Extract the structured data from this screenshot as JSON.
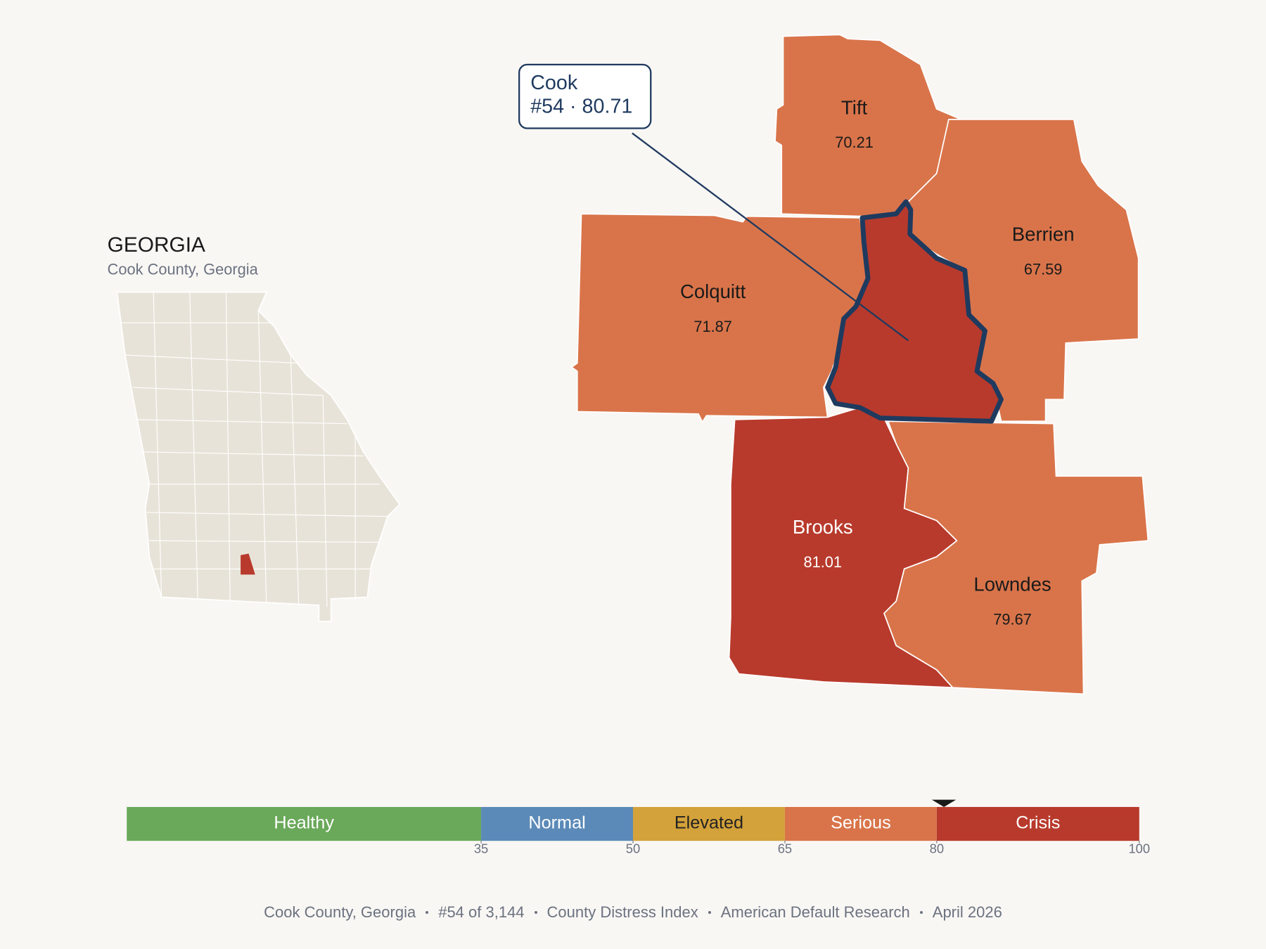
{
  "state": {
    "title": "GEORGIA",
    "subtitle": "Cook County, Georgia"
  },
  "map": {
    "counties": [
      {
        "name": "Tift",
        "value": 70.21
      },
      {
        "name": "Berrien",
        "value": 67.59
      },
      {
        "name": "Colquitt",
        "value": 71.87
      },
      {
        "name": "Brooks",
        "value": 81.01
      },
      {
        "name": "Lowndes",
        "value": 79.67
      }
    ],
    "highlight": {
      "name": "Cook",
      "label": "#54 · 80.71"
    }
  },
  "scale": {
    "lim": [
      0,
      100
    ],
    "ticks": [
      35,
      50,
      65,
      80,
      100
    ],
    "marker": 80.71,
    "bands": [
      {
        "label": "Healthy",
        "color": "#6aa85a",
        "text_color": "#ffffff"
      },
      {
        "label": "Normal",
        "color": "#5b8ab8",
        "text_color": "#ffffff"
      },
      {
        "label": "Elevated",
        "color": "#d4a23a",
        "text_color": "#222222"
      },
      {
        "label": "Serious",
        "color": "#d9744a",
        "text_color": "#ffffff"
      },
      {
        "label": "Crisis",
        "color": "#b83a2c",
        "text_color": "#ffffff"
      }
    ]
  },
  "footer": [
    "Cook County, Georgia",
    "#54 of 3,144",
    "County Distress Index",
    "American Default Research",
    "April 2026"
  ]
}
